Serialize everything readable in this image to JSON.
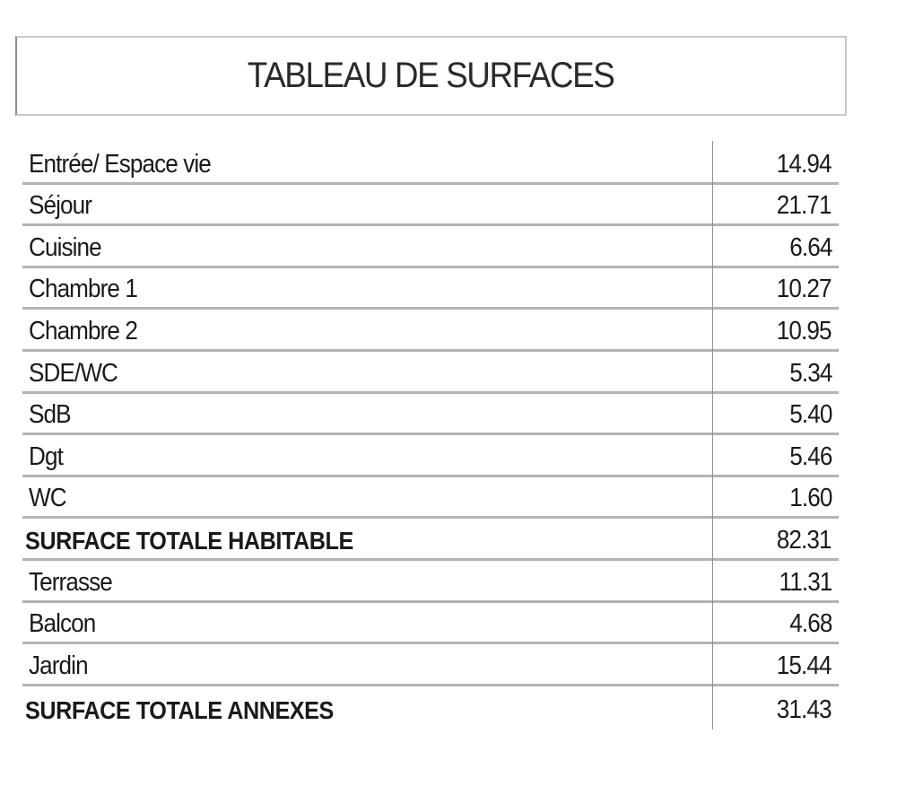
{
  "title": "TABLEAU DE SURFACES",
  "rows": [
    {
      "label": "Entrée/ Espace vie",
      "value": "14.94",
      "total": false
    },
    {
      "label": "Séjour",
      "value": "21.71",
      "total": false
    },
    {
      "label": "Cuisine",
      "value": "6.64",
      "total": false
    },
    {
      "label": "Chambre 1",
      "value": "10.27",
      "total": false
    },
    {
      "label": "Chambre 2",
      "value": "10.95",
      "total": false
    },
    {
      "label": "SDE/WC",
      "value": "5.34",
      "total": false
    },
    {
      "label": "SdB",
      "value": "5.40",
      "total": false
    },
    {
      "label": "Dgt",
      "value": "5.46",
      "total": false
    },
    {
      "label": "WC",
      "value": "1.60",
      "total": false
    },
    {
      "label": "SURFACE TOTALE HABITABLE",
      "value": "82.31",
      "total": true
    },
    {
      "label": "Terrasse",
      "value": "11.31",
      "total": false
    },
    {
      "label": "Balcon",
      "value": "4.68",
      "total": false
    },
    {
      "label": "Jardin",
      "value": "15.44",
      "total": false
    },
    {
      "label": "SURFACE TOTALE ANNEXES",
      "value": "31.43",
      "total": true
    }
  ]
}
